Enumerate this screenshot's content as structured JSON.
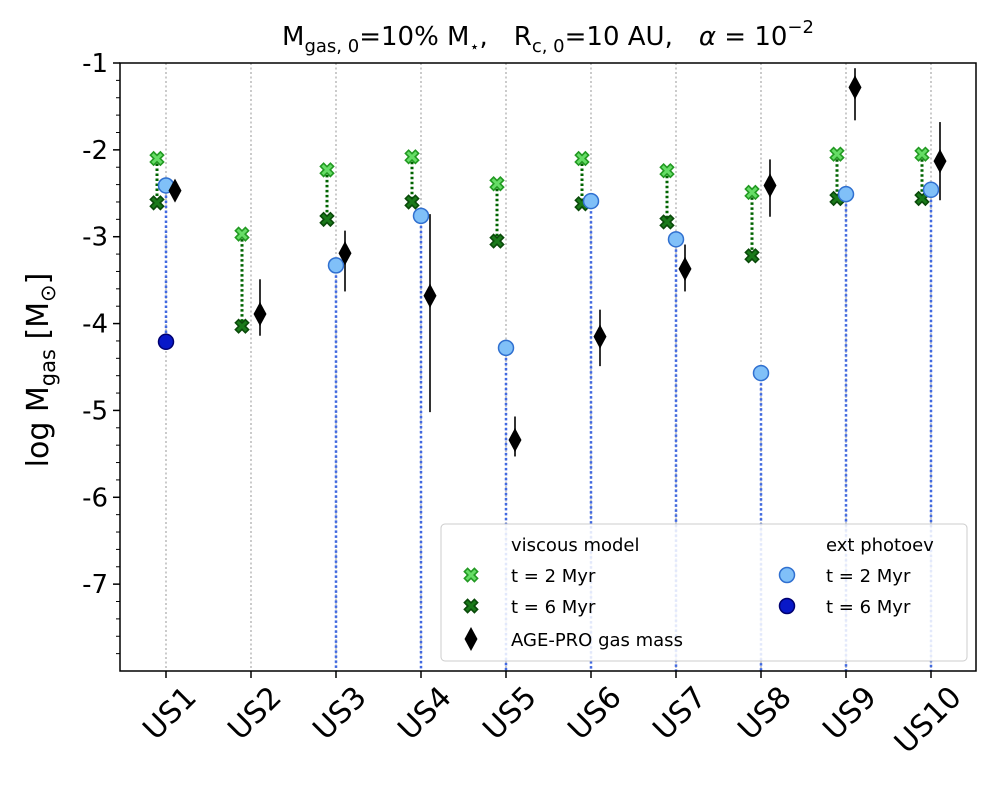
{
  "chart_data": {
    "type": "scatter",
    "title": {
      "m_label": "M",
      "m_sub": "gas, 0",
      "m_value": "=10% M",
      "m_star": "⋆",
      "m_sep": ",",
      "r_label": "R",
      "r_sub": "c, 0",
      "r_value": "=10 AU,",
      "alpha_label": "α",
      "alpha_value": " = 10",
      "alpha_exp": "−2"
    },
    "ylabel": {
      "main": "log M",
      "sub": "gas",
      "unit_open": " [M",
      "unit_sym": "⊙",
      "unit_close": "]"
    },
    "ylim": [
      -8.0,
      -1.0
    ],
    "yticks": [
      -1,
      -2,
      -3,
      -4,
      -5,
      -6,
      -7
    ],
    "ytick_labels": [
      "-1",
      "-2",
      "-3",
      "-4",
      "-5",
      "-6",
      "-7"
    ],
    "categories": [
      "US1",
      "US2",
      "US3",
      "US4",
      "US5",
      "US6",
      "US7",
      "US8",
      "US9",
      "US10"
    ],
    "series": [
      {
        "name": "viscous model t = 2 Myr",
        "group": "viscous",
        "values": [
          -2.1,
          -2.97,
          -2.23,
          -2.08,
          -2.39,
          -2.1,
          -2.24,
          -2.49,
          -2.05,
          -2.05
        ]
      },
      {
        "name": "viscous model t = 6 Myr",
        "group": "viscous",
        "values": [
          -2.61,
          -4.03,
          -2.8,
          -2.6,
          -3.05,
          -2.62,
          -2.83,
          -3.22,
          -2.56,
          -2.56
        ]
      },
      {
        "name": "ext photoev t = 2 Myr",
        "group": "photoev",
        "values": [
          -2.41,
          null,
          -3.33,
          -2.76,
          -4.28,
          -2.59,
          -3.03,
          -4.57,
          -2.51,
          -2.46
        ]
      },
      {
        "name": "ext photoev t = 6 Myr",
        "group": "photoev",
        "values": [
          -4.21,
          null,
          null,
          null,
          null,
          null,
          null,
          null,
          null,
          null
        ]
      },
      {
        "name": "AGE-PRO gas mass",
        "group": "observed",
        "values": [
          -2.47,
          -3.89,
          -3.19,
          -3.68,
          -5.34,
          -4.15,
          -3.37,
          -2.41,
          -1.28,
          -2.13
        ],
        "err_low": [
          -2.55,
          -4.14,
          -3.63,
          -5.02,
          -5.53,
          -4.49,
          -3.63,
          -2.77,
          -1.66,
          -2.58
        ],
        "err_high": [
          -2.39,
          -3.49,
          -2.93,
          -2.74,
          -5.07,
          -3.84,
          -3.09,
          -2.11,
          -1.06,
          -1.68
        ]
      }
    ],
    "legend": {
      "position": "bottom-right",
      "viscous_header": "viscous model",
      "photoev_header": "ext photoev",
      "t2": "t = 2 Myr",
      "t6": "t = 6 Myr",
      "agepro": "AGE-PRO gas mass"
    },
    "colors": {
      "light_green": "#66dd66",
      "light_green_edge": "#229922",
      "dark_green": "#1a7a1a",
      "dark_green_edge": "#0a4a0a",
      "green_line": "#006400",
      "light_blue": "#80c0f8",
      "light_blue_edge": "#3070d0",
      "dark_blue": "#0818c8",
      "dark_blue_edge": "#000070",
      "blue_line": "#4169e1",
      "grid": "#a8a8a8",
      "black": "#000000",
      "errbar": "#333333"
    }
  }
}
